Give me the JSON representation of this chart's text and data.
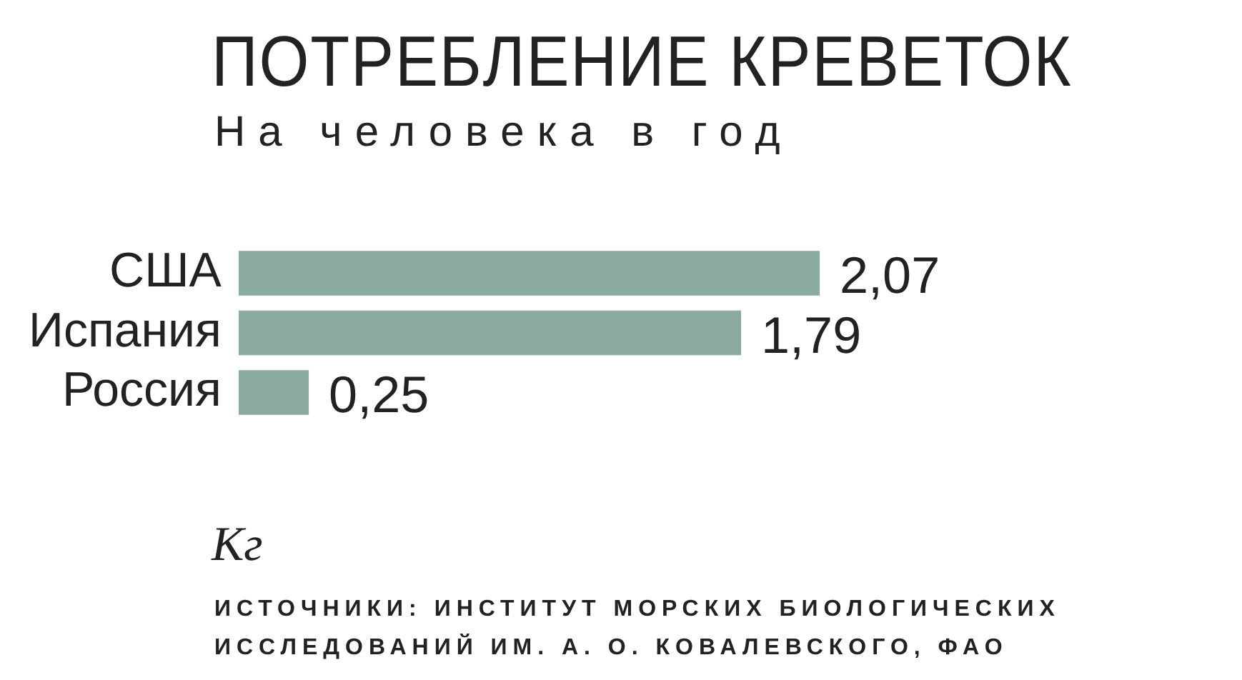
{
  "chart_data": {
    "type": "bar",
    "orientation": "horizontal",
    "title": "ПОТРЕБЛЕНИЕ КРЕВЕТОК",
    "subtitle": "На человека в год",
    "categories": [
      "США",
      "Испания",
      "Россия"
    ],
    "values": [
      2.07,
      1.79,
      0.25
    ],
    "value_labels": [
      "2,07",
      "1,79",
      "0,25"
    ],
    "color": "#8aab9d",
    "tick_labels": "y",
    "grid": false,
    "legend": false,
    "annotations": [
      "Кг",
      "ИСТОЧНИКИ: ИНСТИТУТ МОРСКИХ БИОЛОГИЧЕСКИХ ИССЛЕДОВАНИЙ ИМ. А. О. КОВАЛЕВСКОГО, ФАО"
    ]
  }
}
